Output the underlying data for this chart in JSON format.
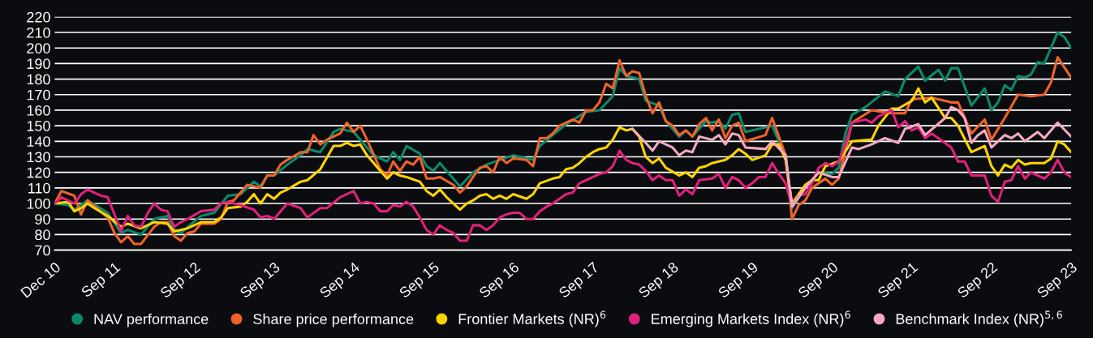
{
  "chart_data": {
    "type": "line",
    "grid": "y",
    "legend": "bottom",
    "line_style": "solid",
    "xlim": [
      "2010-12",
      "2023-09"
    ],
    "xticks": [
      {
        "value": "2010-12",
        "label": "Dec 10"
      },
      {
        "value": "2011-09",
        "label": "Sep 11"
      },
      {
        "value": "2012-09",
        "label": "Sep 12"
      },
      {
        "value": "2013-09",
        "label": "Sep 13"
      },
      {
        "value": "2014-09",
        "label": "Sep 14"
      },
      {
        "value": "2015-09",
        "label": "Sep 15"
      },
      {
        "value": "2016-09",
        "label": "Sep 16"
      },
      {
        "value": "2017-09",
        "label": "Sep 17"
      },
      {
        "value": "2018-09",
        "label": "Sep 18"
      },
      {
        "value": "2019-09",
        "label": "Sep 19"
      },
      {
        "value": "2020-09",
        "label": "Sep 20"
      },
      {
        "value": "2021-09",
        "label": "Sep 21"
      },
      {
        "value": "2022-09",
        "label": "Sep 22"
      },
      {
        "value": "2023-09",
        "label": "Sep 23"
      }
    ],
    "ylim": [
      70,
      220
    ],
    "yticks": [
      70,
      80,
      90,
      100,
      110,
      120,
      130,
      140,
      150,
      160,
      170,
      180,
      190,
      200,
      210,
      220
    ],
    "series": [
      {
        "name": "NAV performance",
        "color": "#0a8a6a",
        "x": [
          "2010-12",
          "2011-02",
          "2011-03",
          "2011-05",
          "2011-08",
          "2011-10",
          "2011-11",
          "2012-01",
          "2012-03",
          "2012-05",
          "2012-06",
          "2012-07",
          "2012-10",
          "2012-12",
          "2013-02",
          "2013-04",
          "2013-06",
          "2013-07",
          "2013-08",
          "2013-09",
          "2013-11",
          "2014-01",
          "2014-02",
          "2014-04",
          "2014-06",
          "2014-07",
          "2014-09",
          "2014-12",
          "2015-02",
          "2015-03",
          "2015-04",
          "2015-05",
          "2015-07",
          "2015-08",
          "2015-09",
          "2015-10",
          "2016-01",
          "2016-03",
          "2016-05",
          "2016-09",
          "2016-12",
          "2017-01",
          "2017-03",
          "2017-05",
          "2017-08",
          "2017-10",
          "2017-12",
          "2018-01",
          "2018-02",
          "2018-04",
          "2018-05",
          "2018-07",
          "2018-08",
          "2018-10",
          "2018-11",
          "2018-12",
          "2019-02",
          "2019-03",
          "2019-04",
          "2019-05",
          "2019-06",
          "2019-07",
          "2019-08",
          "2019-10",
          "2019-12",
          "2020-02",
          "2020-03",
          "2020-05",
          "2020-07",
          "2020-09",
          "2020-10",
          "2020-11",
          "2020-12",
          "2021-02",
          "2021-05",
          "2021-07",
          "2021-08",
          "2021-10",
          "2021-11",
          "2022-01",
          "2022-02",
          "2022-03",
          "2022-04",
          "2022-06",
          "2022-08",
          "2022-09",
          "2022-10",
          "2022-11",
          "2022-12",
          "2023-01",
          "2023-02",
          "2023-03",
          "2023-04",
          "2023-05",
          "2023-07",
          "2023-08",
          "2023-09"
        ],
        "values": [
          100,
          99,
          96,
          102,
          94,
          81,
          83,
          80,
          90,
          92,
          83,
          81,
          92,
          94,
          105,
          106,
          114,
          111,
          118,
          118,
          125,
          131,
          135,
          133,
          146,
          148,
          146,
          131,
          127,
          133,
          128,
          137,
          132,
          124,
          121,
          126,
          111,
          120,
          125,
          131,
          128,
          137,
          144,
          151,
          159,
          160,
          169,
          187,
          182,
          180,
          166,
          163,
          153,
          143,
          147,
          143,
          153,
          152,
          153,
          148,
          157,
          158,
          146,
          148,
          150,
          130,
          97,
          110,
          120,
          119,
          123,
          145,
          157,
          162,
          172,
          169,
          180,
          188,
          179,
          186,
          179,
          187,
          187,
          163,
          174,
          160,
          165,
          176,
          173,
          182,
          181,
          183,
          191,
          190,
          210,
          207,
          200
        ]
      },
      {
        "name": "Share price performance",
        "color": "#f0622a",
        "x": [
          "2010-12",
          "2011-01",
          "2011-03",
          "2011-04",
          "2011-05",
          "2011-08",
          "2011-09",
          "2011-10",
          "2011-11",
          "2011-12",
          "2012-01",
          "2012-03",
          "2012-04",
          "2012-05",
          "2012-06",
          "2012-07",
          "2012-08",
          "2012-09",
          "2012-10",
          "2012-12",
          "2013-01",
          "2013-02",
          "2013-03",
          "2013-05",
          "2013-07",
          "2013-08",
          "2013-09",
          "2013-10",
          "2013-11",
          "2014-01",
          "2014-02",
          "2014-03",
          "2014-04",
          "2014-05",
          "2014-07",
          "2014-08",
          "2014-09",
          "2014-10",
          "2014-11",
          "2015-01",
          "2015-02",
          "2015-03",
          "2015-04",
          "2015-05",
          "2015-06",
          "2015-07",
          "2015-08",
          "2015-09",
          "2015-10",
          "2015-12",
          "2016-01",
          "2016-02",
          "2016-03",
          "2016-04",
          "2016-05",
          "2016-06",
          "2016-07",
          "2016-08",
          "2016-09",
          "2016-11",
          "2016-12",
          "2017-01",
          "2017-02",
          "2017-03",
          "2017-04",
          "2017-05",
          "2017-06",
          "2017-07",
          "2017-08",
          "2017-09",
          "2017-10",
          "2017-11",
          "2017-12",
          "2018-01",
          "2018-02",
          "2018-03",
          "2018-04",
          "2018-05",
          "2018-06",
          "2018-07",
          "2018-08",
          "2018-09",
          "2018-10",
          "2018-11",
          "2018-12",
          "2019-01",
          "2019-02",
          "2019-03",
          "2019-04",
          "2019-05",
          "2019-06",
          "2019-07",
          "2019-08",
          "2019-11",
          "2019-12",
          "2020-02",
          "2020-03",
          "2020-04",
          "2020-05",
          "2020-06",
          "2020-08",
          "2020-09",
          "2020-10",
          "2020-12",
          "2021-03",
          "2021-06",
          "2021-08",
          "2021-09",
          "2021-12",
          "2022-03",
          "2022-04",
          "2022-06",
          "2022-08",
          "2022-09",
          "2022-11",
          "2023-01",
          "2023-03",
          "2023-05",
          "2023-06",
          "2023-07",
          "2023-09"
        ],
        "values": [
          100,
          108,
          105,
          93,
          102,
          91,
          81,
          75,
          79,
          74,
          74,
          85,
          88,
          88,
          79,
          76,
          81,
          82,
          87,
          87,
          90,
          101,
          102,
          112,
          110,
          118,
          118,
          125,
          128,
          133,
          133,
          144,
          138,
          141,
          145,
          152,
          146,
          150,
          141,
          122,
          118,
          127,
          121,
          127,
          125,
          130,
          116,
          116,
          117,
          112,
          107,
          111,
          117,
          123,
          124,
          120,
          130,
          126,
          129,
          128,
          124,
          142,
          142,
          145,
          150,
          152,
          154,
          152,
          160,
          160,
          165,
          177,
          174,
          192,
          182,
          185,
          184,
          169,
          158,
          165,
          153,
          150,
          144,
          147,
          143,
          151,
          155,
          147,
          154,
          142,
          150,
          152,
          140,
          144,
          155,
          131,
          90,
          99,
          102,
          110,
          116,
          112,
          116,
          152,
          160,
          158,
          158,
          167,
          168,
          165,
          165,
          145,
          154,
          141,
          155,
          170,
          169,
          170,
          178,
          194,
          181
        ]
      },
      {
        "name": "Frontier Markets (NR)$^{6}$",
        "color": "#ffd400",
        "x": [
          "2010-12",
          "2011-02",
          "2011-03",
          "2011-04",
          "2011-05",
          "2011-06",
          "2011-08",
          "2011-10",
          "2011-11",
          "2012-01",
          "2012-03",
          "2012-05",
          "2012-06",
          "2012-08",
          "2012-10",
          "2012-12",
          "2013-01",
          "2013-02",
          "2013-04",
          "2013-05",
          "2013-06",
          "2013-07",
          "2013-08",
          "2013-09",
          "2013-10",
          "2013-11",
          "2014-01",
          "2014-02",
          "2014-04",
          "2014-06",
          "2014-07",
          "2014-08",
          "2014-09",
          "2014-10",
          "2014-11",
          "2015-01",
          "2015-02",
          "2015-03",
          "2015-04",
          "2015-05",
          "2015-07",
          "2015-08",
          "2015-09",
          "2015-10",
          "2015-11",
          "2016-01",
          "2016-02",
          "2016-03",
          "2016-04",
          "2016-05",
          "2016-06",
          "2016-07",
          "2016-08",
          "2016-09",
          "2016-11",
          "2016-12",
          "2017-01",
          "2017-03",
          "2017-04",
          "2017-05",
          "2017-06",
          "2017-07",
          "2017-08",
          "2017-09",
          "2017-10",
          "2017-11",
          "2017-12",
          "2018-01",
          "2018-02",
          "2018-03",
          "2018-04",
          "2018-05",
          "2018-06",
          "2018-07",
          "2018-08",
          "2018-10",
          "2018-11",
          "2018-12",
          "2019-01",
          "2019-02",
          "2019-03",
          "2019-05",
          "2019-06",
          "2019-07",
          "2019-08",
          "2019-09",
          "2019-11",
          "2019-12",
          "2020-01",
          "2020-02",
          "2020-03",
          "2020-05",
          "2020-06",
          "2020-07",
          "2020-08",
          "2020-10",
          "2020-12",
          "2021-03",
          "2021-04",
          "2021-06",
          "2021-07",
          "2021-09",
          "2021-10",
          "2021-11",
          "2021-12",
          "2022-02",
          "2022-03",
          "2022-04",
          "2022-06",
          "2022-08",
          "2022-09",
          "2022-10",
          "2022-11",
          "2022-12",
          "2023-01",
          "2023-02",
          "2023-03",
          "2023-05",
          "2023-06",
          "2023-07",
          "2023-08",
          "2023-09"
        ],
        "values": [
          100,
          101,
          95,
          97,
          100,
          97,
          92,
          85,
          87,
          84,
          88,
          87,
          82,
          84,
          88,
          88,
          91,
          97,
          98,
          101,
          106,
          100,
          106,
          103,
          107,
          109,
          114,
          115,
          122,
          137,
          137,
          139,
          137,
          138,
          131,
          121,
          116,
          120,
          118,
          117,
          114,
          108,
          105,
          109,
          104,
          96,
          100,
          102,
          105,
          106,
          103,
          105,
          103,
          106,
          103,
          106,
          113,
          116,
          117,
          122,
          123,
          126,
          130,
          133,
          135,
          136,
          141,
          149,
          147,
          148,
          143,
          130,
          126,
          129,
          123,
          118,
          120,
          117,
          123,
          124,
          126,
          128,
          131,
          135,
          132,
          128,
          131,
          138,
          138,
          128,
          100,
          112,
          115,
          115,
          124,
          127,
          140,
          141,
          150,
          161,
          161,
          166,
          174,
          165,
          168,
          155,
          155,
          150,
          133,
          137,
          124,
          118,
          125,
          123,
          128,
          125,
          126,
          126,
          129,
          140,
          138,
          133
        ]
      },
      {
        "name": "Emerging Markets Index (NR)$^{6}$",
        "color": "#e0207a",
        "x": [
          "2010-12",
          "2011-01",
          "2011-03",
          "2011-04",
          "2011-05",
          "2011-07",
          "2011-08",
          "2011-09",
          "2011-10",
          "2011-11",
          "2011-12",
          "2012-01",
          "2012-02",
          "2012-03",
          "2012-04",
          "2012-05",
          "2012-06",
          "2012-07",
          "2012-08",
          "2012-10",
          "2012-12",
          "2013-01",
          "2013-02",
          "2013-04",
          "2013-06",
          "2013-07",
          "2013-08",
          "2013-09",
          "2013-11",
          "2014-01",
          "2014-02",
          "2014-04",
          "2014-05",
          "2014-07",
          "2014-09",
          "2014-10",
          "2014-11",
          "2014-12",
          "2015-01",
          "2015-02",
          "2015-03",
          "2015-04",
          "2015-05",
          "2015-06",
          "2015-07",
          "2015-08",
          "2015-09",
          "2015-10",
          "2015-11",
          "2015-12",
          "2016-01",
          "2016-02",
          "2016-03",
          "2016-04",
          "2016-05",
          "2016-06",
          "2016-07",
          "2016-08",
          "2016-09",
          "2016-10",
          "2016-11",
          "2016-12",
          "2017-01",
          "2017-02",
          "2017-03",
          "2017-04",
          "2017-05",
          "2017-06",
          "2017-07",
          "2017-08",
          "2017-10",
          "2017-11",
          "2017-12",
          "2018-01",
          "2018-02",
          "2018-03",
          "2018-04",
          "2018-05",
          "2018-06",
          "2018-07",
          "2018-08",
          "2018-09",
          "2018-10",
          "2018-11",
          "2018-12",
          "2019-01",
          "2019-03",
          "2019-04",
          "2019-05",
          "2019-06",
          "2019-07",
          "2019-08",
          "2019-09",
          "2019-10",
          "2019-11",
          "2019-12",
          "2020-01",
          "2020-02",
          "2020-03",
          "2020-04",
          "2020-05",
          "2020-06",
          "2020-07",
          "2020-08",
          "2020-09",
          "2020-10",
          "2020-11",
          "2020-12",
          "2021-01",
          "2021-02",
          "2021-03",
          "2021-04",
          "2021-06",
          "2021-07",
          "2021-08",
          "2021-09",
          "2021-10",
          "2021-11",
          "2021-12",
          "2022-01",
          "2022-03",
          "2022-04",
          "2022-05",
          "2022-06",
          "2022-08",
          "2022-09",
          "2022-10",
          "2022-11",
          "2022-12",
          "2023-01",
          "2023-02",
          "2023-03",
          "2023-04",
          "2023-05",
          "2023-06",
          "2023-07",
          "2023-08",
          "2023-09"
        ],
        "values": [
          100,
          104,
          100,
          106,
          109,
          105,
          104,
          93,
          82,
          92,
          86,
          85,
          94,
          100,
          96,
          95,
          85,
          88,
          90,
          95,
          96,
          100,
          101,
          99,
          96,
          91,
          92,
          90,
          100,
          97,
          91,
          97,
          97,
          104,
          108,
          100,
          101,
          100,
          95,
          95,
          99,
          98,
          101,
          98,
          91,
          83,
          80,
          86,
          83,
          81,
          76,
          76,
          86,
          86,
          83,
          86,
          91,
          93,
          94,
          94,
          90,
          90,
          95,
          98,
          100,
          103,
          106,
          107,
          113,
          115,
          119,
          120,
          124,
          134,
          128,
          126,
          125,
          121,
          115,
          118,
          115,
          115,
          105,
          109,
          106,
          115,
          116,
          119,
          110,
          117,
          115,
          110,
          113,
          117,
          117,
          126,
          119,
          113,
          98,
          105,
          106,
          113,
          123,
          126,
          124,
          127,
          138,
          152,
          153,
          154,
          152,
          156,
          160,
          149,
          153,
          147,
          149,
          142,
          145,
          142,
          136,
          127,
          127,
          118,
          118,
          105,
          101,
          114,
          115,
          124,
          116,
          120,
          118,
          116,
          120,
          128,
          120,
          117
        ]
      },
      {
        "name": "Benchmark Index (NR)$^{5,6}$",
        "color": "#f5a9c2",
        "x": [
          "2018-03",
          "2018-05",
          "2018-06",
          "2018-07",
          "2018-09",
          "2018-10",
          "2018-11",
          "2018-12",
          "2019-01",
          "2019-03",
          "2019-04",
          "2019-05",
          "2019-06",
          "2019-07",
          "2019-08",
          "2019-11",
          "2019-12",
          "2020-02",
          "2020-03",
          "2020-05",
          "2020-07",
          "2020-09",
          "2020-10",
          "2020-12",
          "2021-01",
          "2021-03",
          "2021-05",
          "2021-07",
          "2021-08",
          "2021-10",
          "2021-11",
          "2022-02",
          "2022-03",
          "2022-04",
          "2022-05",
          "2022-06",
          "2022-07",
          "2022-08",
          "2022-09",
          "2022-11",
          "2022-12",
          "2023-01",
          "2023-02",
          "2023-04",
          "2023-05",
          "2023-07",
          "2023-09"
        ],
        "values": [
          148,
          139,
          134,
          140,
          136,
          131,
          134,
          133,
          143,
          141,
          144,
          138,
          145,
          144,
          136,
          135,
          140,
          131,
          98,
          110,
          120,
          117,
          117,
          136,
          135,
          138,
          142,
          139,
          148,
          151,
          144,
          155,
          162,
          160,
          155,
          139,
          144,
          147,
          136,
          144,
          142,
          145,
          140,
          146,
          142,
          152,
          143
        ]
      }
    ]
  }
}
